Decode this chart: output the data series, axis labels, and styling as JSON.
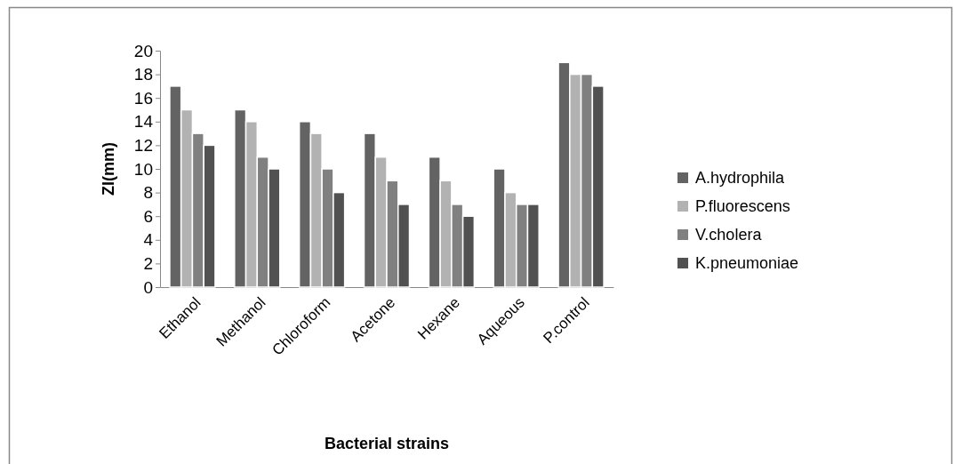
{
  "chart_data": {
    "type": "bar",
    "xlabel": "Bacterial strains",
    "ylabel": "ZI(mm)",
    "categories": [
      "Ethanol",
      "Methanol",
      "Chloroform",
      "Acetone",
      "Hexane",
      "Aqueous",
      "P.control"
    ],
    "series": [
      {
        "name": "A.hydrophila",
        "color": "#636363",
        "values": [
          17,
          15,
          14,
          13,
          11,
          10,
          19
        ]
      },
      {
        "name": "P.fluorescens",
        "color": "#b2b2b2",
        "values": [
          15,
          14,
          13,
          11,
          9,
          8,
          18
        ]
      },
      {
        "name": "V.cholera",
        "color": "#808080",
        "values": [
          13,
          11,
          10,
          9,
          7,
          7,
          18
        ]
      },
      {
        "name": "K.pneumoniae",
        "color": "#515151",
        "values": [
          12,
          10,
          8,
          7,
          6,
          7,
          17
        ]
      }
    ],
    "ylim": [
      0,
      20
    ],
    "yticks": [
      0,
      2,
      4,
      6,
      8,
      10,
      12,
      14,
      16,
      18,
      20
    ],
    "grid": false,
    "legend": "right"
  }
}
